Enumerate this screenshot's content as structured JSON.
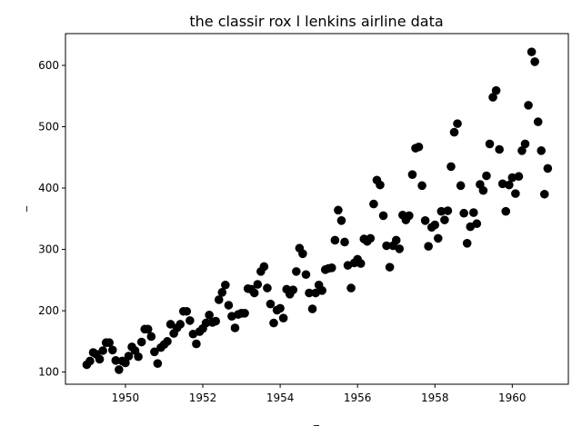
{
  "chart_data": {
    "type": "scatter",
    "title": "the classir rox l lenkins airline data",
    "xlabel": "_",
    "ylabel": "_",
    "xlim": [
      1948.45,
      1961.45
    ],
    "ylim": [
      80.2,
      651.8
    ],
    "grid": false,
    "legend": "none",
    "xticks": [
      1950,
      1952,
      1954,
      1956,
      1958,
      1960
    ],
    "yticks": [
      100,
      200,
      300,
      400,
      500,
      600
    ],
    "color": "#000000",
    "series": [
      {
        "x": [
          1949.0,
          1949.083,
          1949.167,
          1949.25,
          1949.333,
          1949.417,
          1949.5,
          1949.583,
          1949.667,
          1949.75,
          1949.833,
          1949.917,
          1950.0,
          1950.083,
          1950.167,
          1950.25,
          1950.333,
          1950.417,
          1950.5,
          1950.583,
          1950.667,
          1950.75,
          1950.833,
          1950.917,
          1951.0,
          1951.083,
          1951.167,
          1951.25,
          1951.333,
          1951.417,
          1951.5,
          1951.583,
          1951.667,
          1951.75,
          1951.833,
          1951.917,
          1952.0,
          1952.083,
          1952.167,
          1952.25,
          1952.333,
          1952.417,
          1952.5,
          1952.583,
          1952.667,
          1952.75,
          1952.833,
          1952.917,
          1953.0,
          1953.083,
          1953.167,
          1953.25,
          1953.333,
          1953.417,
          1953.5,
          1953.583,
          1953.667,
          1953.75,
          1953.833,
          1953.917,
          1954.0,
          1954.083,
          1954.167,
          1954.25,
          1954.333,
          1954.417,
          1954.5,
          1954.583,
          1954.667,
          1954.75,
          1954.833,
          1954.917,
          1955.0,
          1955.083,
          1955.167,
          1955.25,
          1955.333,
          1955.417,
          1955.5,
          1955.583,
          1955.667,
          1955.75,
          1955.833,
          1955.917,
          1956.0,
          1956.083,
          1956.167,
          1956.25,
          1956.333,
          1956.417,
          1956.5,
          1956.583,
          1956.667,
          1956.75,
          1956.833,
          1956.917,
          1957.0,
          1957.083,
          1957.167,
          1957.25,
          1957.333,
          1957.417,
          1957.5,
          1957.583,
          1957.667,
          1957.75,
          1957.833,
          1957.917,
          1958.0,
          1958.083,
          1958.167,
          1958.25,
          1958.333,
          1958.417,
          1958.5,
          1958.583,
          1958.667,
          1958.75,
          1958.833,
          1958.917,
          1959.0,
          1959.083,
          1959.167,
          1959.25,
          1959.333,
          1959.417,
          1959.5,
          1959.583,
          1959.667,
          1959.75,
          1959.833,
          1959.917,
          1960.0,
          1960.083,
          1960.167,
          1960.25,
          1960.333,
          1960.417,
          1960.5,
          1960.583,
          1960.667,
          1960.75,
          1960.833,
          1960.917
        ],
        "y": [
          112,
          118,
          132,
          129,
          121,
          135,
          148,
          148,
          136,
          119,
          104,
          118,
          115,
          126,
          141,
          135,
          125,
          149,
          170,
          170,
          158,
          133,
          114,
          140,
          145,
          150,
          178,
          163,
          172,
          178,
          199,
          199,
          184,
          162,
          146,
          166,
          171,
          180,
          193,
          181,
          183,
          218,
          230,
          242,
          209,
          191,
          172,
          194,
          196,
          196,
          236,
          235,
          229,
          243,
          264,
          272,
          237,
          211,
          180,
          201,
          204,
          188,
          235,
          227,
          234,
          264,
          302,
          293,
          259,
          229,
          203,
          229,
          242,
          233,
          267,
          269,
          270,
          315,
          364,
          347,
          312,
          274,
          237,
          278,
          284,
          277,
          317,
          313,
          318,
          374,
          413,
          405,
          355,
          306,
          271,
          306,
          315,
          301,
          356,
          348,
          355,
          422,
          465,
          467,
          404,
          347,
          305,
          336,
          340,
          318,
          362,
          348,
          363,
          435,
          491,
          505,
          404,
          359,
          310,
          337,
          360,
          342,
          406,
          396,
          420,
          472,
          548,
          559,
          463,
          407,
          362,
          405,
          417,
          391,
          419,
          461,
          472,
          535,
          622,
          606,
          508,
          461,
          390,
          432
        ]
      }
    ]
  }
}
